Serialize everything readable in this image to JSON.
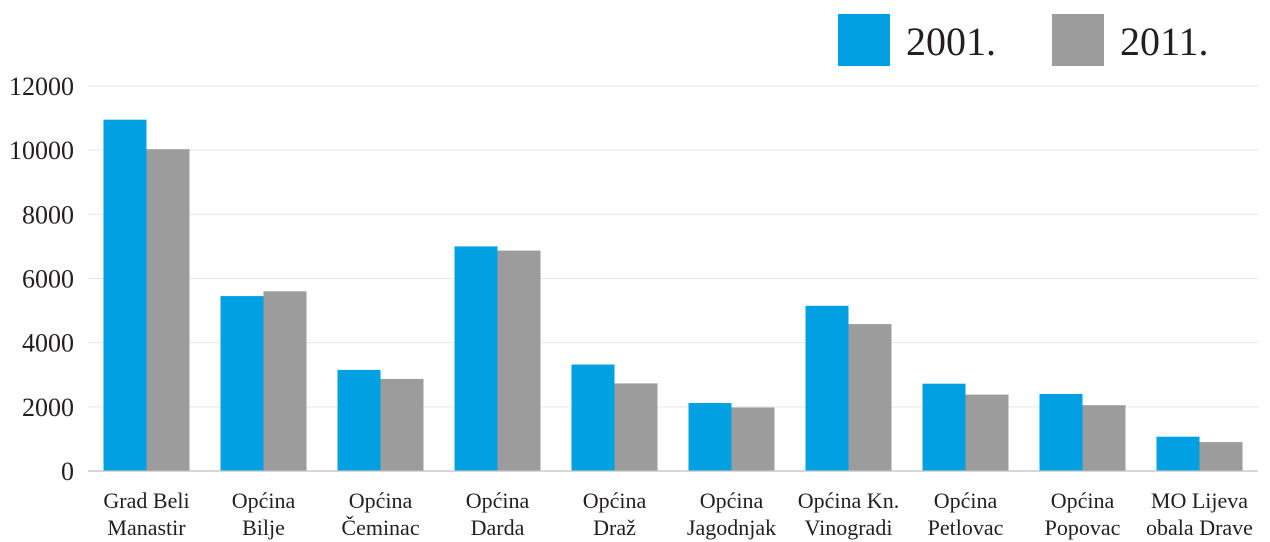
{
  "chart_data": {
    "type": "bar",
    "title": "",
    "xlabel": "",
    "ylabel": "",
    "ylim": [
      0,
      12000
    ],
    "yticks": [
      0,
      2000,
      4000,
      6000,
      8000,
      10000,
      12000
    ],
    "grid": true,
    "legend_position": "top-right",
    "categories": [
      [
        "Grad Beli",
        "Manastir"
      ],
      [
        "Općina",
        "Bilje"
      ],
      [
        "Općina",
        "Čeminac"
      ],
      [
        "Općina",
        "Darda"
      ],
      [
        "Općina",
        "Draž"
      ],
      [
        "Općina",
        "Jagodnjak"
      ],
      [
        "Općina Kn.",
        "Vinogradi"
      ],
      [
        "Općina",
        "Petlovac"
      ],
      [
        "Općina",
        "Popovac"
      ],
      [
        "MO Lijeva",
        "obala Drave"
      ]
    ],
    "series": [
      {
        "name": "2001.",
        "color": "#00a0e3",
        "values": [
          10950,
          5450,
          3150,
          7000,
          3320,
          2120,
          5150,
          2720,
          2400,
          1070
        ]
      },
      {
        "name": "2011.",
        "color": "#9d9c9c",
        "values": [
          10030,
          5600,
          2870,
          6870,
          2730,
          1980,
          4580,
          2380,
          2050,
          900
        ]
      }
    ]
  }
}
